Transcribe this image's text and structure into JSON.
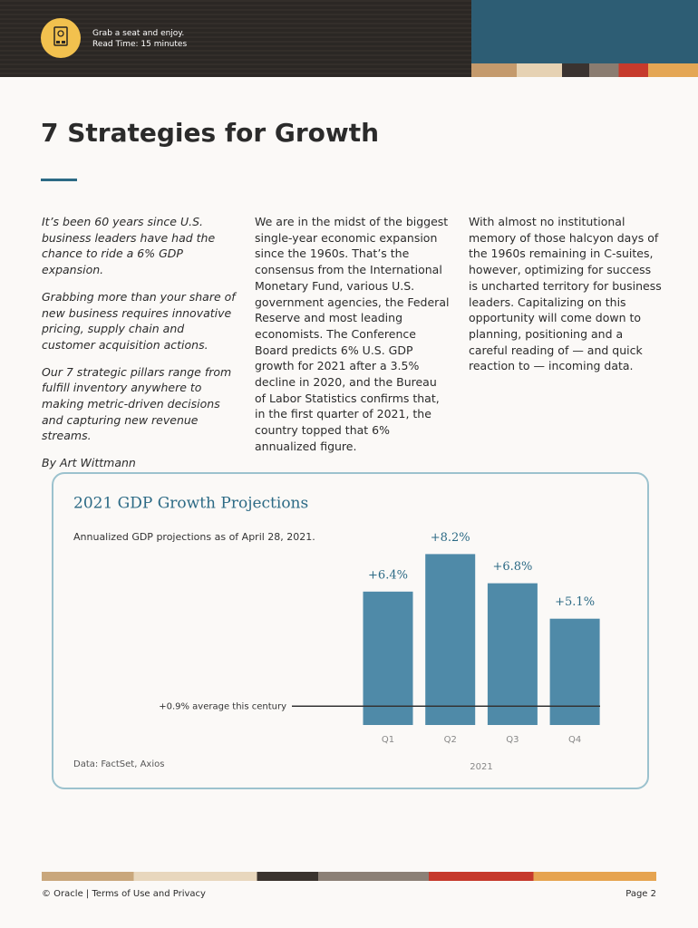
{
  "header": {
    "tagline": "Grab a seat and enjoy.",
    "read_time": "Read Time: 15 minutes"
  },
  "article": {
    "title": "7 Strategies for Growth",
    "intro": [
      "It’s been 60 years since U.S. business leaders have had the chance to ride a 6% GDP expansion.",
      "Grabbing more than your share of new business requires innovative pricing, supply chain and customer acquisition actions.",
      "Our 7 strategic pillars range from fulfill inventory anywhere to making metric-driven decisions and capturing new revenue streams."
    ],
    "byline": "By Art Wittmann",
    "columns": [
      "We are in the midst of the biggest single-year economic expansion since the 1960s. That’s the consensus from the International Monetary Fund, various U.S. government agencies, the Federal Reserve and most leading economists. The Conference Board predicts 6% U.S. GDP growth for 2021 after a 3.5% decline in 2020, and the Bureau of Labor Statistics confirms that, in the first quarter of 2021, the country topped that 6% annualized figure.",
      "With almost no institutional memory of those halcyon days of the 1960s remaining in C-suites, however, optimizing for success is uncharted territory for business leaders. Capitalizing on this opportunity will come down to planning, positioning and a careful reading of — and quick reaction to — incoming data."
    ]
  },
  "chart_data": {
    "type": "bar",
    "title": "2021 GDP Growth Projections",
    "subtitle": "Annualized GDP projections as of April 28, 2021.",
    "categories": [
      "Q1",
      "Q2",
      "Q3",
      "Q4"
    ],
    "values": [
      6.4,
      8.2,
      6.8,
      5.1
    ],
    "value_labels": [
      "+6.4%",
      "+8.2%",
      "+6.8%",
      "+5.1%"
    ],
    "color": "#4f8aa8",
    "x_label": "2021",
    "reference_line": {
      "value": 0.9,
      "label": "+0.9% average this century"
    },
    "source": "Data: FactSet, Axios"
  },
  "footer": {
    "links": "© Oracle | Terms of Use and Privacy",
    "page": "Page 2"
  }
}
